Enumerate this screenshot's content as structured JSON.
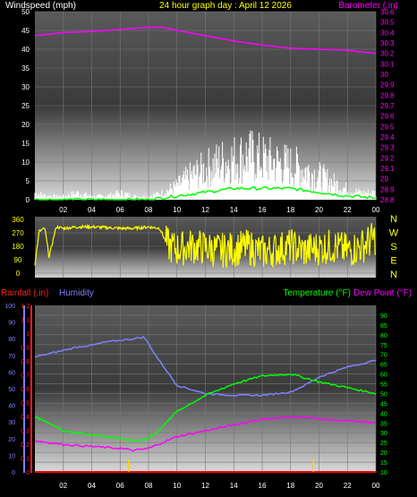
{
  "chart_data": [
    {
      "type": "line",
      "title": "24 hour graph day : April 12 2026",
      "ylabel": "Windspeed (mph)",
      "y2label": "Barometer (.in)",
      "ylim": [
        0,
        50
      ],
      "y2lim": [
        28.8,
        30.6
      ],
      "yticks": [
        "0",
        "5",
        "10",
        "15",
        "20",
        "25",
        "30",
        "35",
        "40",
        "45",
        "50"
      ],
      "y2ticks": [
        "28.8",
        "28.9",
        "29",
        "29.1",
        "29.2",
        "29.3",
        "29.4",
        "29.5",
        "29.6",
        "29.7",
        "29.8",
        "29.9",
        "30",
        "30.1",
        "30.2",
        "30.3",
        "30.4",
        "30.5",
        "30.6"
      ],
      "xticks": [
        "02",
        "04",
        "06",
        "08",
        "10",
        "12",
        "14",
        "16",
        "18",
        "20",
        "22",
        "00"
      ],
      "series": [
        {
          "color": "#ff00ff",
          "axis": "y2",
          "x": [
            0,
            2,
            4,
            6,
            8,
            9,
            10,
            12,
            14,
            16,
            18,
            20,
            22,
            24
          ],
          "values": [
            30.37,
            30.4,
            30.41,
            30.43,
            30.45,
            30.45,
            30.42,
            30.37,
            30.32,
            30.28,
            30.25,
            30.24,
            30.23,
            30.2
          ]
        },
        {
          "color": "#ffffff",
          "axis": "y",
          "x": [
            0,
            1,
            2,
            3,
            4,
            5,
            6,
            7,
            8,
            9,
            10,
            11,
            12,
            13,
            14,
            15,
            16,
            17,
            18,
            19,
            20,
            21,
            22,
            23,
            24
          ],
          "values": [
            2,
            1,
            1,
            2,
            1,
            1,
            2,
            1,
            1,
            2,
            4,
            7,
            9,
            11,
            12,
            13,
            12,
            11,
            10,
            9,
            7,
            5,
            3,
            2,
            2
          ]
        },
        {
          "color": "#00ff00",
          "axis": "y",
          "x": [
            0,
            2,
            4,
            6,
            8,
            9,
            10,
            12,
            14,
            16,
            18,
            20,
            22,
            24
          ],
          "values": [
            0,
            0,
            0,
            0,
            0,
            0.5,
            1,
            2,
            3,
            3,
            3,
            2,
            1,
            0.5
          ]
        }
      ]
    },
    {
      "type": "scatter",
      "ylim": [
        0,
        360
      ],
      "yticks": [
        "0",
        "90",
        "180",
        "270",
        "360"
      ],
      "compass": [
        "N",
        "W",
        "S",
        "E",
        "N"
      ],
      "xticks": [
        "02",
        "04",
        "06",
        "08",
        "10",
        "12",
        "14",
        "16",
        "18",
        "20",
        "22",
        "00"
      ],
      "series": [
        {
          "color": "#ffff00",
          "x": [
            0,
            0.3,
            0.7,
            1,
            1.5,
            2,
            3,
            4,
            5,
            6,
            7,
            8,
            8.8,
            9.3,
            10,
            11,
            12,
            13,
            14,
            15,
            16,
            17,
            18,
            19,
            20,
            21,
            22,
            23,
            24
          ],
          "values": [
            60,
            280,
            300,
            110,
            310,
            300,
            310,
            310,
            305,
            300,
            300,
            310,
            300,
            190,
            160,
            180,
            170,
            150,
            160,
            175,
            140,
            160,
            180,
            150,
            170,
            180,
            150,
            180,
            240
          ]
        }
      ]
    },
    {
      "type": "line",
      "ylabel": "Rainfall (.in)",
      "ylabel2": "Humidity",
      "y2label": "Temperature (°F)",
      "y2label2": "Dew Point (°F)",
      "rain_lim": [
        0,
        1.2
      ],
      "hum_lim": [
        0,
        100
      ],
      "temp_lim": [
        10,
        95
      ],
      "rain_ticks": [
        "0",
        "0.1",
        "0.2",
        "0.3",
        "0.4",
        "0.5",
        "0.6",
        "0.7",
        "0.8",
        "0.9",
        "1",
        "1.1",
        "1.2"
      ],
      "hum_ticks": [
        "0",
        "10",
        "20",
        "30",
        "40",
        "50",
        "60",
        "70",
        "80",
        "90",
        "100"
      ],
      "temp_ticks": [
        "10",
        "15",
        "20",
        "25",
        "30",
        "35",
        "40",
        "45",
        "50",
        "55",
        "60",
        "65",
        "70",
        "75",
        "80",
        "85",
        "90"
      ],
      "xticks": [
        "02",
        "04",
        "06",
        "08",
        "10",
        "12",
        "14",
        "16",
        "18",
        "20",
        "22",
        "00"
      ],
      "series": [
        {
          "color": "#8080ff",
          "axis": "hum",
          "x": [
            0,
            1,
            2,
            3,
            4,
            5,
            6,
            7,
            7.7,
            8.5,
            9.5,
            10,
            12,
            14,
            16,
            18,
            19,
            20,
            22,
            24
          ],
          "values": [
            69,
            71,
            73,
            75,
            76,
            78,
            79,
            80,
            81,
            70,
            58,
            52,
            47,
            46,
            46,
            48,
            52,
            57,
            63,
            67
          ]
        },
        {
          "color": "#00ff00",
          "axis": "temp",
          "x": [
            0,
            1,
            2,
            4,
            6,
            7,
            8,
            9,
            10,
            12,
            14,
            16,
            18,
            20,
            22,
            24
          ],
          "values": [
            38,
            35,
            31,
            29,
            27,
            26,
            27,
            33,
            41,
            49,
            55,
            59,
            60,
            56,
            53,
            50
          ]
        },
        {
          "color": "#ff00ff",
          "axis": "temp",
          "x": [
            0,
            2,
            4,
            6,
            7,
            8,
            9,
            10,
            12,
            14,
            16,
            18,
            19,
            20,
            22,
            24
          ],
          "values": [
            26,
            24,
            23,
            22,
            21,
            22,
            25,
            28,
            31,
            34,
            37,
            38,
            38,
            37,
            36,
            35
          ]
        },
        {
          "color": "#ff0000",
          "axis": "rain",
          "x": [
            0,
            24
          ],
          "values": [
            0,
            0
          ]
        }
      ],
      "markers": [
        6.6,
        19.6
      ],
      "marker_color": "#ffd000"
    }
  ]
}
